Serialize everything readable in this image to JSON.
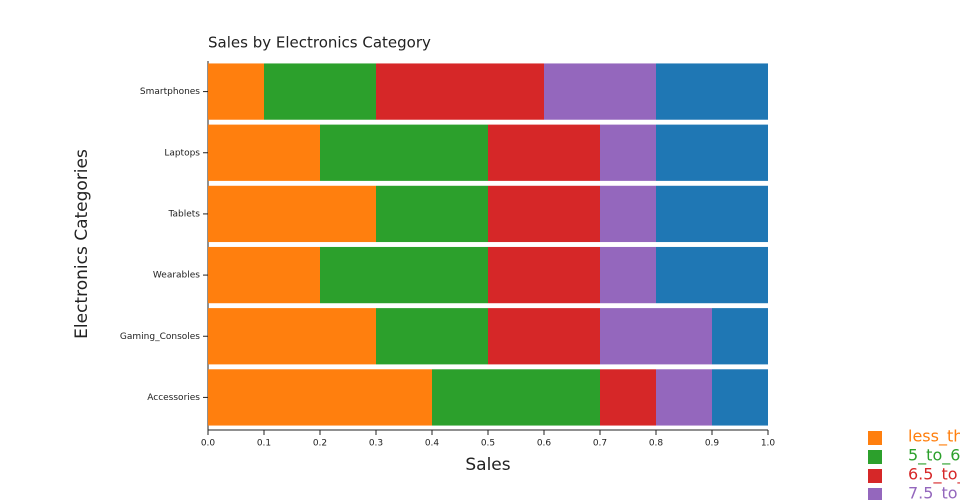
{
  "chart_data": {
    "type": "stacked-bar-horizontal",
    "title": "Sales by Electronics Category",
    "x_label": "Sales",
    "y_label": "Electronics Categories",
    "categories": [
      "Smartphones",
      "Laptops",
      "Tablets",
      "Wearables",
      "Gaming_Consoles",
      "Accessories"
    ],
    "series": [
      {
        "name": "less_th",
        "color": "#ff7f0e",
        "values": [
          0.1,
          0.2,
          0.3,
          0.2,
          0.3,
          0.4
        ]
      },
      {
        "name": "5_to_6",
        "color": "#2ca02c",
        "values": [
          0.2,
          0.3,
          0.2,
          0.3,
          0.2,
          0.3
        ]
      },
      {
        "name": "6.5_to_",
        "color": "#d62728",
        "values": [
          0.3,
          0.2,
          0.2,
          0.2,
          0.2,
          0.1
        ]
      },
      {
        "name": "7.5_to",
        "color": "#9467bd",
        "values": [
          0.2,
          0.1,
          0.1,
          0.1,
          0.2,
          0.1
        ]
      },
      {
        "color": "#1f77b4",
        "values": [
          0.2,
          0.2,
          0.2,
          0.2,
          0.1,
          0.1
        ]
      }
    ],
    "xlim": [
      0,
      1
    ],
    "xticks": [
      {
        "value": 0,
        "label": "0.0"
      },
      0.1,
      0.2,
      0.3,
      0.4,
      0.5,
      0.6,
      0.7,
      0.8,
      0.9,
      {
        "value": 1,
        "label": "1.0"
      }
    ],
    "legend": "bottom-right"
  }
}
